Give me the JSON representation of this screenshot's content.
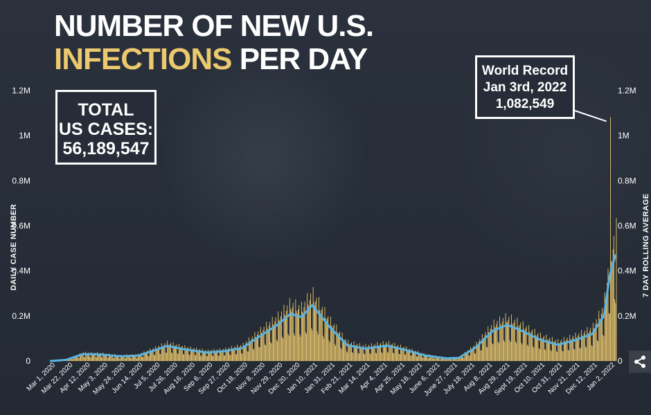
{
  "title": {
    "line1": "NUMBER OF NEW U.S.",
    "line2_highlight": "INFECTIONS",
    "line2_rest": "PER DAY"
  },
  "total_box": {
    "line1": "TOTAL",
    "line2": "US CASES:",
    "line3": "56,189,547"
  },
  "record_box": {
    "line1": "World Record",
    "line2": "Jan 3rd, 2022",
    "line3": "1,082,549"
  },
  "colors": {
    "background": "#262d38",
    "bars": "#ecc86e",
    "rolling_line": "#5ab4e0",
    "title_highlight": "#ecc86e"
  },
  "share_icon": "share-icon",
  "chart_data": {
    "type": "bar",
    "overlay": "line",
    "ylabel_left": "DAILY CASE NUMBER",
    "ylabel_right": "7 DAY ROLLING AVERAGE",
    "ylim": [
      0,
      1200000
    ],
    "yticks": [
      {
        "value": 0,
        "label": "0"
      },
      {
        "value": 200000,
        "label": "0.2M"
      },
      {
        "value": 400000,
        "label": "0.4M"
      },
      {
        "value": 600000,
        "label": "0.6M"
      },
      {
        "value": 800000,
        "label": "0.8M"
      },
      {
        "value": 1000000,
        "label": "1M"
      },
      {
        "value": 1200000,
        "label": "1.2M"
      }
    ],
    "x_range": [
      "2020-03-01",
      "2022-01-10"
    ],
    "x_tick_labels": [
      "Mar 1, 2020",
      "Mar 22, 2020",
      "Apr 12, 2020",
      "May 3, 2020",
      "May 24, 2020",
      "Jun 14, 2020",
      "Jul 5, 2020",
      "Jul 26, 2020",
      "Aug 16, 2020",
      "Sep 6, 2020",
      "Sep 27, 2020",
      "Oct 18, 2020",
      "Nov 8, 2020",
      "Nov 29, 2020",
      "Dec 20, 2020",
      "Jan 10, 2021",
      "Jan 31, 2021",
      "Feb 21, 2021",
      "Mar 14, 2021",
      "Apr 4, 2021",
      "Apr 25, 2021",
      "May 16, 2021",
      "June 6, 2021",
      "June 27, 2021",
      "July 18, 2021",
      "Aug 8, 2021",
      "Aug 29, 2021",
      "Sept 19, 2021",
      "Oct 10, 2021",
      "Oct 31, 2021",
      "Nov 21, 2021",
      "Dec 12, 2021",
      "Jan 2, 2022"
    ],
    "rolling_average": [
      {
        "date": "2020-03-01",
        "value": 0
      },
      {
        "date": "2020-03-20",
        "value": 5000
      },
      {
        "date": "2020-04-10",
        "value": 31000
      },
      {
        "date": "2020-05-01",
        "value": 29000
      },
      {
        "date": "2020-05-25",
        "value": 21000
      },
      {
        "date": "2020-06-15",
        "value": 24000
      },
      {
        "date": "2020-07-05",
        "value": 48000
      },
      {
        "date": "2020-07-20",
        "value": 67000
      },
      {
        "date": "2020-08-10",
        "value": 52000
      },
      {
        "date": "2020-09-05",
        "value": 38000
      },
      {
        "date": "2020-09-25",
        "value": 43000
      },
      {
        "date": "2020-10-18",
        "value": 58000
      },
      {
        "date": "2020-11-08",
        "value": 110000
      },
      {
        "date": "2020-11-29",
        "value": 160000
      },
      {
        "date": "2020-12-15",
        "value": 210000
      },
      {
        "date": "2020-12-28",
        "value": 195000
      },
      {
        "date": "2021-01-10",
        "value": 248000
      },
      {
        "date": "2021-01-31",
        "value": 150000
      },
      {
        "date": "2021-02-21",
        "value": 70000
      },
      {
        "date": "2021-03-14",
        "value": 55000
      },
      {
        "date": "2021-04-10",
        "value": 68000
      },
      {
        "date": "2021-05-01",
        "value": 50000
      },
      {
        "date": "2021-05-25",
        "value": 25000
      },
      {
        "date": "2021-06-20",
        "value": 12000
      },
      {
        "date": "2021-07-05",
        "value": 14000
      },
      {
        "date": "2021-07-25",
        "value": 60000
      },
      {
        "date": "2021-08-15",
        "value": 135000
      },
      {
        "date": "2021-09-01",
        "value": 160000
      },
      {
        "date": "2021-09-15",
        "value": 140000
      },
      {
        "date": "2021-10-10",
        "value": 95000
      },
      {
        "date": "2021-11-01",
        "value": 72000
      },
      {
        "date": "2021-11-21",
        "value": 92000
      },
      {
        "date": "2021-12-12",
        "value": 120000
      },
      {
        "date": "2021-12-26",
        "value": 200000
      },
      {
        "date": "2022-01-02",
        "value": 380000
      },
      {
        "date": "2022-01-09",
        "value": 470000
      }
    ],
    "record": {
      "date": "2022-01-03",
      "value": 1082549
    }
  }
}
